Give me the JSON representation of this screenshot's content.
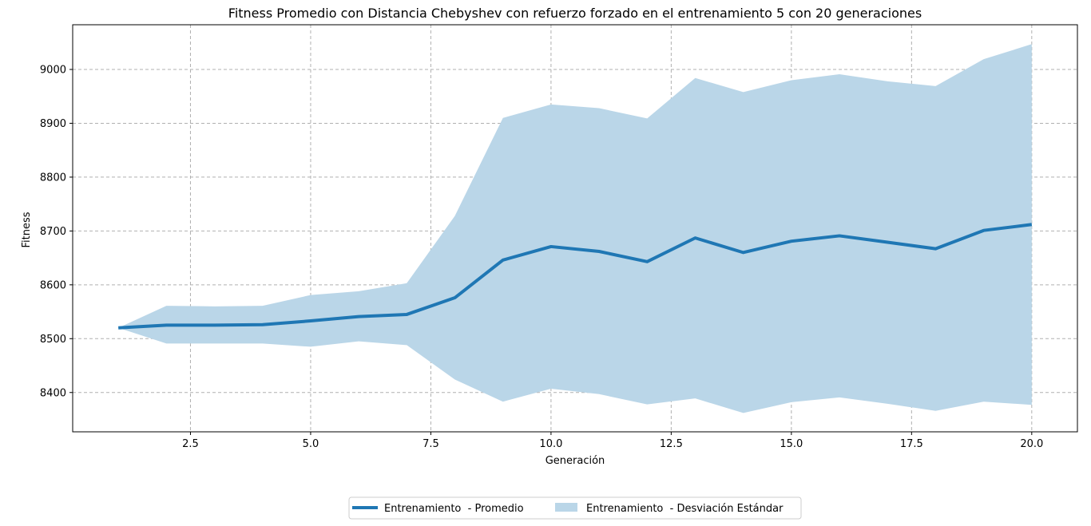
{
  "chart_data": {
    "type": "line",
    "title": "Fitness Promedio con Distancia Chebyshev con refuerzo forzado en el entrenamiento 5 con 20 generaciones",
    "xlabel": "Generación",
    "ylabel": "Fitness",
    "xlim": [
      0.05,
      20.95
    ],
    "ylim": [
      8327,
      9083
    ],
    "xticks": [
      2.5,
      5.0,
      7.5,
      10.0,
      12.5,
      15.0,
      17.5,
      20.0
    ],
    "xtick_labels": [
      "2.5",
      "5.0",
      "7.5",
      "10.0",
      "12.5",
      "15.0",
      "17.5",
      "20.0"
    ],
    "yticks": [
      8400,
      8500,
      8600,
      8700,
      8800,
      8900,
      9000
    ],
    "ytick_labels": [
      "8400",
      "8500",
      "8600",
      "8700",
      "8800",
      "8900",
      "9000"
    ],
    "grid": true,
    "legend_position": "bottom-center",
    "x": [
      1,
      2,
      3,
      4,
      5,
      6,
      7,
      8,
      9,
      10,
      11,
      12,
      13,
      14,
      15,
      16,
      17,
      18,
      19,
      20
    ],
    "series": [
      {
        "name": "Entrenamiento  - Promedio",
        "kind": "line",
        "color": "#1f77b4",
        "values": [
          8520,
          8525,
          8525,
          8526,
          8533,
          8541,
          8545,
          8576,
          8646,
          8671,
          8662,
          8643,
          8687,
          8660,
          8681,
          8691,
          8679,
          8667,
          8701,
          8712
        ]
      },
      {
        "name": "Entrenamiento  - Desviación Estándar",
        "kind": "band",
        "color": "#bad6e8",
        "upper": [
          8520,
          8561,
          8560,
          8561,
          8581,
          8588,
          8603,
          8728,
          8910,
          8935,
          8928,
          8909,
          8984,
          8958,
          8980,
          8991,
          8978,
          8969,
          9019,
          9047
        ],
        "lower": [
          8520,
          8491,
          8491,
          8491,
          8485,
          8495,
          8488,
          8424,
          8383,
          8407,
          8397,
          8378,
          8389,
          8362,
          8382,
          8391,
          8379,
          8366,
          8383,
          8377
        ]
      }
    ]
  }
}
